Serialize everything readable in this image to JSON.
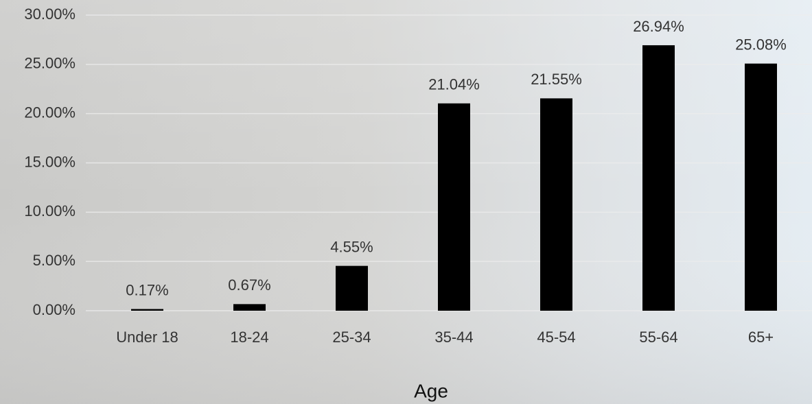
{
  "chart_data": {
    "type": "bar",
    "x_label": "Age",
    "categories": [
      "Under 18",
      "18-24",
      "25-34",
      "35-44",
      "45-54",
      "55-64",
      "65+"
    ],
    "values": [
      0.17,
      0.67,
      4.55,
      21.04,
      21.55,
      26.94,
      25.08
    ],
    "value_labels": [
      "0.17%",
      "0.67%",
      "4.55%",
      "21.04%",
      "21.55%",
      "26.94%",
      "25.08%"
    ],
    "color": "#000000",
    "ylim": [
      0,
      30
    ],
    "yticks": [
      {
        "value": 0,
        "label": "0.00%"
      },
      {
        "value": 5,
        "label": "5.00%"
      },
      {
        "value": 10,
        "label": "10.00%"
      },
      {
        "value": 15,
        "label": "15.00%"
      },
      {
        "value": 20,
        "label": "20.00%"
      },
      {
        "value": 25,
        "label": "25.00%"
      },
      {
        "value": 30,
        "label": "30.00%"
      }
    ],
    "grid": true
  }
}
